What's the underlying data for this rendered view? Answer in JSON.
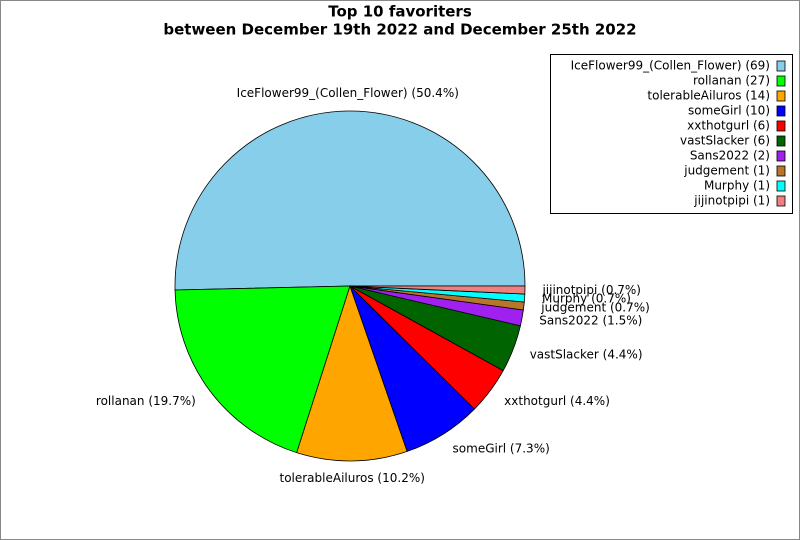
{
  "chart_data": {
    "type": "pie",
    "title": "Top 10 favoriters",
    "subtitle": "between December 19th 2022 and December 25th 2022",
    "categories": [
      "IceFlower99_(Collen_Flower)",
      "rollanan",
      "tolerableAiluros",
      "someGirl",
      "xxthotgurl",
      "vastSlacker",
      "Sans2022",
      "judgement",
      "Murphy",
      "jijinotpipi"
    ],
    "values": [
      69,
      27,
      14,
      10,
      6,
      6,
      2,
      1,
      1,
      1
    ],
    "slice_labels": [
      "IceFlower99_(Collen_Flower) (50.4%)",
      "rollanan (19.7%)",
      "tolerableAiluros (10.2%)",
      "someGirl (7.3%)",
      "xxthotgurl (4.4%)",
      "vastSlacker (4.4%)",
      "Sans2022 (1.5%)",
      "judgement (0.7%)",
      "Murphy (0.7%)",
      "jijinotpipi (0.7%)"
    ],
    "legend_labels": [
      "IceFlower99_(Collen_Flower) (69)",
      "rollanan (27)",
      "tolerableAiluros (14)",
      "someGirl (10)",
      "xxthotgurl (6)",
      "vastSlacker (6)",
      "Sans2022 (2)",
      "judgement (1)",
      "Murphy (1)",
      "jijinotpipi (1)"
    ],
    "colors": [
      "#87ceeb",
      "#00ff00",
      "#ffa500",
      "#0000ff",
      "#ff0000",
      "#006400",
      "#a020f0",
      "#b8762b",
      "#00ffff",
      "#f08080"
    ],
    "legend": "upper right"
  }
}
